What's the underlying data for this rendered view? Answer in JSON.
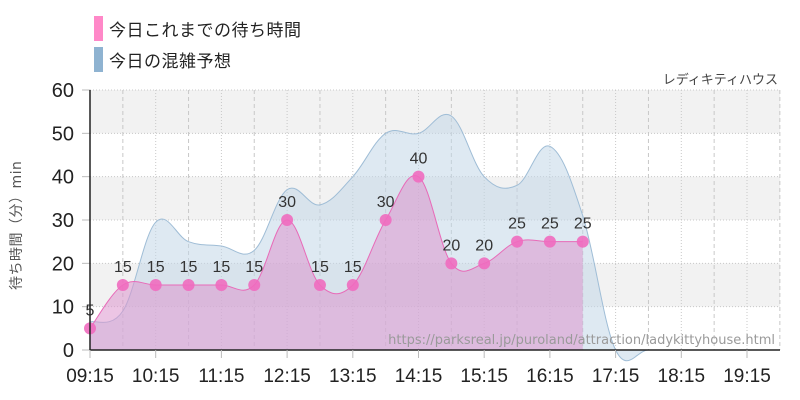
{
  "legend": {
    "items": [
      {
        "label": "今日これまでの待ち時間",
        "color": "#ff88c8"
      },
      {
        "label": "今日の混雑予想",
        "color": "#8fb3d1"
      }
    ]
  },
  "attraction_name": "レディキティハウス",
  "source_url": "https://parksreal.jp/puroland/attraction/ladykittyhouse.html",
  "colors": {
    "actual_line": "#e86ab8",
    "actual_fill": "rgba(220,150,205,0.55)",
    "actual_marker": "#f06cbf",
    "forecast_line": "#9fbdd6",
    "forecast_fill": "rgba(195,215,232,0.55)",
    "band": "#f2f2f2",
    "grid": "#c8c8c8",
    "axis": "#222222"
  },
  "chart_data": {
    "type": "area",
    "title": "",
    "xlabel": "",
    "ylabel": "待ち時間（分）min",
    "ylim": [
      0,
      60
    ],
    "yticks": [
      0,
      10,
      20,
      30,
      40,
      50,
      60
    ],
    "xticks": [
      "09:15",
      "10:15",
      "11:15",
      "12:15",
      "13:15",
      "14:15",
      "15:15",
      "16:15",
      "17:15",
      "18:15",
      "19:15"
    ],
    "x_range": [
      "09:15",
      "19:45"
    ],
    "grid": true,
    "legend_position": "top-left",
    "series": [
      {
        "name": "今日これまでの待ち時間",
        "type": "area+markers",
        "x": [
          "09:15",
          "09:45",
          "10:15",
          "10:45",
          "11:15",
          "11:45",
          "12:15",
          "12:45",
          "13:15",
          "13:45",
          "14:15",
          "14:45",
          "15:15",
          "15:45",
          "16:15",
          "16:45"
        ],
        "values": [
          5,
          15,
          15,
          15,
          15,
          15,
          30,
          15,
          15,
          30,
          40,
          20,
          20,
          25,
          25,
          25
        ],
        "data_labels": true
      },
      {
        "name": "今日の混雑予想",
        "type": "area",
        "x": [
          "09:15",
          "09:45",
          "10:15",
          "10:45",
          "11:15",
          "11:45",
          "12:15",
          "12:45",
          "13:15",
          "13:45",
          "14:15",
          "14:45",
          "15:15",
          "15:45",
          "16:15",
          "16:45",
          "17:15",
          "17:45",
          "18:15",
          "18:45",
          "19:15",
          "19:45"
        ],
        "values": [
          6.5,
          9,
          29.5,
          25,
          24,
          23,
          37,
          33.5,
          40,
          50,
          50,
          54,
          40,
          38,
          47,
          31,
          0,
          0,
          0,
          0,
          0,
          0
        ]
      }
    ]
  }
}
